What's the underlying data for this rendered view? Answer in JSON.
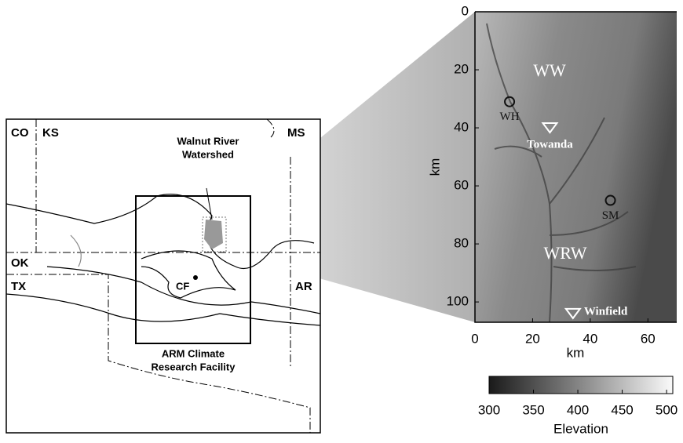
{
  "map": {
    "states": [
      "CO",
      "KS",
      "MS",
      "OK",
      "TX",
      "AR"
    ],
    "watershed_label": [
      "Walnut River",
      "Watershed"
    ],
    "facility_label": [
      "ARM Climate",
      "Research Facility"
    ],
    "site_label": "CF"
  },
  "elevation_panel": {
    "xlabel": "km",
    "ylabel": "km",
    "xlim": [
      0,
      70
    ],
    "ylim": [
      0,
      107
    ],
    "xticks": [
      0,
      20,
      40,
      60
    ],
    "yticks": [
      0,
      20,
      40,
      60,
      80,
      100
    ],
    "regions": [
      "WW",
      "WRW"
    ],
    "stations": [
      {
        "name": "WH",
        "x": 12,
        "y": 31,
        "symbol": "circle"
      },
      {
        "name": "SM",
        "x": 47,
        "y": 65,
        "symbol": "circle"
      },
      {
        "name": "Towanda",
        "x": 26,
        "y": 40,
        "symbol": "triangle"
      },
      {
        "name": "Winfield",
        "x": 34,
        "y": 104,
        "symbol": "triangle"
      }
    ]
  },
  "colorbar": {
    "label": "Elevation",
    "clim": [
      300,
      507
    ],
    "ticks": [
      300,
      350,
      400,
      450,
      500
    ]
  }
}
